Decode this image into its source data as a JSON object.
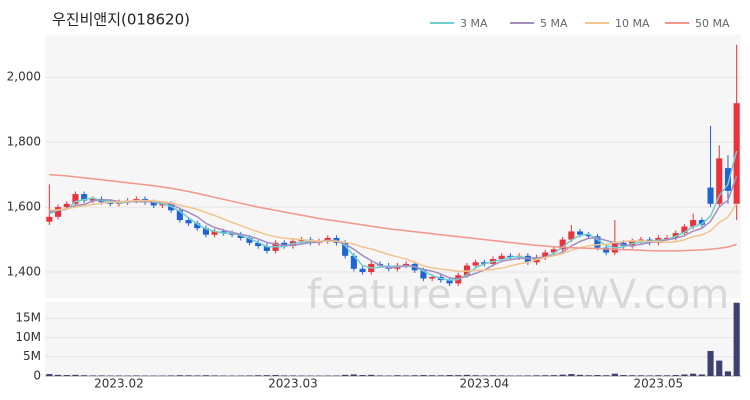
{
  "chart_data": {
    "type": "candlestick",
    "title": "우진비앤지(018620)",
    "watermark": "feature.enViewV.com",
    "categories": [
      null,
      null,
      null,
      null,
      null,
      null,
      null,
      null,
      "2023.02",
      null,
      null,
      null,
      null,
      null,
      null,
      null,
      null,
      null,
      null,
      null,
      null,
      null,
      null,
      null,
      null,
      null,
      null,
      null,
      "2023.03",
      null,
      null,
      null,
      null,
      null,
      null,
      null,
      null,
      null,
      null,
      null,
      null,
      null,
      null,
      null,
      null,
      null,
      null,
      null,
      null,
      null,
      "2023.04",
      null,
      null,
      null,
      null,
      null,
      null,
      null,
      null,
      null,
      null,
      null,
      null,
      null,
      null,
      null,
      null,
      null,
      null,
      null,
      "2023.05",
      null,
      null,
      null,
      null,
      null,
      null,
      null,
      null,
      null
    ],
    "open": [
      1555,
      1570,
      1600,
      1610,
      1640,
      1620,
      1625,
      1615,
      1610,
      1615,
      1620,
      1625,
      1615,
      1605,
      1610,
      1590,
      1560,
      1550,
      1535,
      1515,
      1525,
      1520,
      1515,
      1505,
      1490,
      1480,
      1465,
      1490,
      1480,
      1495,
      1500,
      1490,
      1495,
      1505,
      1490,
      1450,
      1410,
      1400,
      1425,
      1420,
      1410,
      1420,
      1425,
      1405,
      1380,
      1385,
      1375,
      1365,
      1390,
      1420,
      1430,
      1425,
      1440,
      1450,
      1445,
      1450,
      1430,
      1445,
      1460,
      1470,
      1500,
      1525,
      1515,
      1510,
      1475,
      1460,
      1490,
      1480,
      1495,
      1500,
      1490,
      1505,
      1505,
      1520,
      1540,
      1560,
      1660,
      1610,
      1720,
      1610
    ],
    "high": [
      1670,
      1608,
      1618,
      1648,
      1648,
      1633,
      1633,
      1623,
      1623,
      1628,
      1633,
      1633,
      1623,
      1618,
      1618,
      1598,
      1568,
      1558,
      1543,
      1533,
      1533,
      1528,
      1523,
      1513,
      1498,
      1488,
      1498,
      1498,
      1503,
      1508,
      1508,
      1503,
      1513,
      1513,
      1498,
      1458,
      1418,
      1433,
      1433,
      1428,
      1428,
      1433,
      1433,
      1413,
      1393,
      1393,
      1383,
      1398,
      1428,
      1438,
      1438,
      1448,
      1458,
      1458,
      1458,
      1458,
      1453,
      1468,
      1478,
      1508,
      1545,
      1533,
      1523,
      1518,
      1483,
      1560,
      1498,
      1503,
      1508,
      1508,
      1513,
      1513,
      1528,
      1548,
      1580,
      1568,
      1850,
      1790,
      1760,
      2100
    ],
    "low": [
      1545,
      1562,
      1592,
      1602,
      1612,
      1612,
      1607,
      1602,
      1602,
      1607,
      1612,
      1607,
      1597,
      1597,
      1582,
      1552,
      1542,
      1527,
      1507,
      1507,
      1512,
      1507,
      1497,
      1482,
      1472,
      1457,
      1457,
      1472,
      1472,
      1487,
      1482,
      1482,
      1487,
      1482,
      1442,
      1402,
      1392,
      1392,
      1412,
      1402,
      1402,
      1412,
      1397,
      1372,
      1372,
      1367,
      1357,
      1357,
      1382,
      1412,
      1417,
      1417,
      1432,
      1437,
      1437,
      1422,
      1422,
      1437,
      1452,
      1462,
      1492,
      1507,
      1502,
      1467,
      1452,
      1452,
      1472,
      1472,
      1487,
      1482,
      1482,
      1497,
      1497,
      1512,
      1532,
      1537,
      1600,
      1600,
      1610,
      1560
    ],
    "close": [
      1570,
      1600,
      1610,
      1640,
      1620,
      1625,
      1615,
      1610,
      1615,
      1620,
      1625,
      1615,
      1605,
      1610,
      1590,
      1560,
      1550,
      1535,
      1515,
      1525,
      1520,
      1515,
      1505,
      1490,
      1480,
      1465,
      1490,
      1480,
      1495,
      1500,
      1490,
      1495,
      1505,
      1490,
      1450,
      1410,
      1400,
      1425,
      1420,
      1410,
      1420,
      1425,
      1405,
      1380,
      1385,
      1375,
      1365,
      1390,
      1420,
      1430,
      1425,
      1440,
      1450,
      1445,
      1450,
      1430,
      1445,
      1460,
      1470,
      1500,
      1525,
      1515,
      1510,
      1475,
      1460,
      1490,
      1480,
      1495,
      1500,
      1490,
      1505,
      1505,
      1520,
      1540,
      1560,
      1545,
      1610,
      1750,
      1650,
      1920
    ],
    "volume": [
      500000,
      300000,
      250000,
      300000,
      200000,
      150000,
      150000,
      120000,
      130000,
      120000,
      150000,
      120000,
      110000,
      100000,
      150000,
      200000,
      180000,
      150000,
      200000,
      150000,
      120000,
      100000,
      130000,
      150000,
      200000,
      220000,
      250000,
      150000,
      150000,
      120000,
      110000,
      100000,
      120000,
      130000,
      300000,
      400000,
      250000,
      300000,
      150000,
      130000,
      200000,
      150000,
      200000,
      250000,
      200000,
      180000,
      250000,
      220000,
      300000,
      200000,
      150000,
      180000,
      150000,
      120000,
      130000,
      150000,
      180000,
      200000,
      220000,
      350000,
      500000,
      300000,
      200000,
      250000,
      200000,
      600000,
      250000,
      200000,
      180000,
      150000,
      200000,
      180000,
      250000,
      400000,
      600000,
      400000,
      6500000,
      4000000,
      1200000,
      19000000
    ],
    "up_color": "#e8323c",
    "down_color": "#1e64d2",
    "ylim": [
      1320,
      2130
    ],
    "yticks": [
      {
        "value": 1400,
        "label": "1,400"
      },
      {
        "value": 1600,
        "label": "1,600"
      },
      {
        "value": 1800,
        "label": "1,800"
      },
      {
        "value": 2000,
        "label": "2,000"
      }
    ],
    "volume_ylim": [
      0,
      19200000
    ],
    "volume_yticks": [
      0,
      {
        "value": 5000000,
        "label": "5M"
      },
      {
        "value": 10000000,
        "label": "10M"
      },
      {
        "value": 15000000,
        "label": "15M"
      }
    ],
    "volume_color": "#3d3f6e",
    "grid": true,
    "series": [
      {
        "name": "3 MA",
        "color": "#6fcfcf",
        "values": [
          1580,
          1590,
          1593,
          1617,
          1623,
          1628,
          1620,
          1617,
          1613,
          1615,
          1620,
          1620,
          1615,
          1610,
          1602,
          1587,
          1567,
          1548,
          1533,
          1525,
          1520,
          1520,
          1513,
          1503,
          1492,
          1478,
          1478,
          1478,
          1488,
          1492,
          1495,
          1495,
          1497,
          1497,
          1482,
          1450,
          1420,
          1412,
          1415,
          1418,
          1417,
          1418,
          1417,
          1403,
          1390,
          1380,
          1375,
          1377,
          1392,
          1413,
          1425,
          1432,
          1438,
          1445,
          1448,
          1442,
          1442,
          1445,
          1458,
          1477,
          1498,
          1513,
          1517,
          1500,
          1482,
          1475,
          1477,
          1488,
          1492,
          1495,
          1498,
          1500,
          1510,
          1522,
          1540,
          1548,
          1572,
          1635,
          1670,
          1773
        ]
      },
      {
        "name": "5 MA",
        "color": "#a48ec0",
        "values": [
          1585,
          1590,
          1595,
          1605,
          1608,
          1619,
          1622,
          1622,
          1617,
          1617,
          1617,
          1617,
          1616,
          1615,
          1609,
          1596,
          1584,
          1570,
          1550,
          1537,
          1529,
          1522,
          1516,
          1511,
          1502,
          1491,
          1486,
          1482,
          1482,
          1486,
          1491,
          1492,
          1497,
          1496,
          1486,
          1470,
          1451,
          1435,
          1421,
          1413,
          1415,
          1420,
          1416,
          1408,
          1403,
          1394,
          1382,
          1379,
          1387,
          1396,
          1406,
          1421,
          1433,
          1438,
          1442,
          1442,
          1444,
          1446,
          1451,
          1461,
          1480,
          1494,
          1504,
          1505,
          1497,
          1490,
          1483,
          1480,
          1485,
          1491,
          1494,
          1499,
          1504,
          1512,
          1526,
          1534,
          1556,
          1601,
          1621,
          1695
        ]
      },
      {
        "name": "10 MA",
        "color": "#f2c48e",
        "values": [
          1590,
          1592,
          1595,
          1600,
          1604,
          1608,
          1612,
          1615,
          1616,
          1618,
          1620,
          1620,
          1619,
          1616,
          1613,
          1606,
          1600,
          1593,
          1583,
          1574,
          1563,
          1553,
          1543,
          1533,
          1524,
          1515,
          1509,
          1504,
          1502,
          1500,
          1497,
          1495,
          1495,
          1495,
          1492,
          1486,
          1477,
          1471,
          1463,
          1454,
          1447,
          1440,
          1430,
          1419,
          1413,
          1409,
          1406,
          1403,
          1403,
          1405,
          1406,
          1408,
          1412,
          1419,
          1425,
          1430,
          1438,
          1445,
          1450,
          1457,
          1467,
          1475,
          1481,
          1484,
          1485,
          1491,
          1494,
          1496,
          1496,
          1495,
          1493,
          1492,
          1493,
          1499,
          1509,
          1514,
          1527,
          1553,
          1569,
          1611
        ]
      },
      {
        "name": "50 MA",
        "color": "#f2968a",
        "values": [
          1700,
          1698,
          1696,
          1693,
          1690,
          1687,
          1684,
          1681,
          1678,
          1675,
          1672,
          1669,
          1666,
          1662,
          1658,
          1653,
          1648,
          1642,
          1636,
          1630,
          1624,
          1618,
          1612,
          1606,
          1600,
          1595,
          1590,
          1585,
          1580,
          1575,
          1570,
          1565,
          1561,
          1557,
          1553,
          1549,
          1545,
          1541,
          1537,
          1533,
          1530,
          1527,
          1524,
          1521,
          1518,
          1515,
          1512,
          1509,
          1506,
          1503,
          1500,
          1497,
          1494,
          1491,
          1488,
          1485,
          1482,
          1480,
          1478,
          1476,
          1475,
          1474,
          1473,
          1472,
          1471,
          1470,
          1469,
          1468,
          1467,
          1466,
          1465,
          1465,
          1465,
          1466,
          1467,
          1468,
          1470,
          1473,
          1477,
          1485
        ]
      }
    ]
  }
}
